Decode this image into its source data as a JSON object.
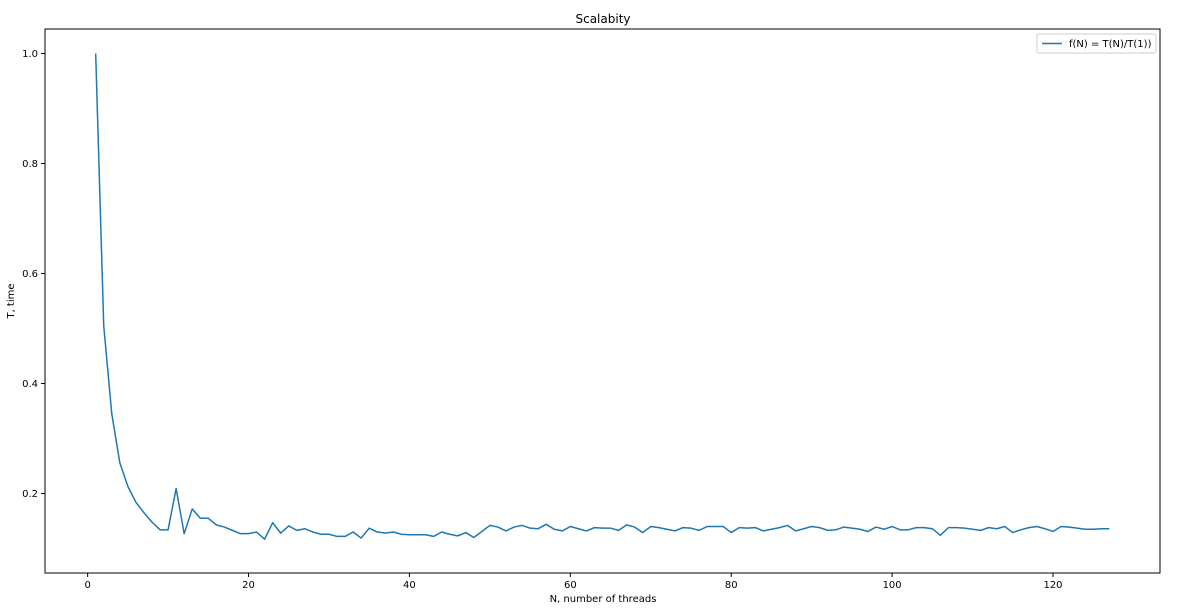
{
  "chart_data": {
    "type": "line",
    "title": "Scalabity",
    "xlabel": "N, number of threads",
    "ylabel": "T, time",
    "xlim": [
      -5.3,
      133.3
    ],
    "ylim": [
      0.0555,
      1.0445
    ],
    "grid": false,
    "legend_position": "top-right",
    "x_ticks": [
      0,
      20,
      40,
      60,
      80,
      100,
      120
    ],
    "y_ticks": [
      0.2,
      0.4,
      0.6,
      0.8,
      1.0
    ],
    "x_tick_labels": [
      "0",
      "20",
      "40",
      "60",
      "80",
      "100",
      "120"
    ],
    "y_tick_labels": [
      "0.2",
      "0.4",
      "0.6",
      "0.8",
      "1.0"
    ],
    "series": [
      {
        "name": "f(N) = T(N)/T(1))",
        "color": "#1f77b4",
        "x": [
          1,
          2,
          3,
          4,
          5,
          6,
          7,
          8,
          9,
          10,
          11,
          12,
          13,
          14,
          15,
          16,
          17,
          18,
          19,
          20,
          21,
          22,
          23,
          24,
          25,
          26,
          27,
          28,
          29,
          30,
          31,
          32,
          33,
          34,
          35,
          36,
          37,
          38,
          39,
          40,
          41,
          42,
          43,
          44,
          45,
          46,
          47,
          48,
          49,
          50,
          51,
          52,
          53,
          54,
          55,
          56,
          57,
          58,
          59,
          60,
          61,
          62,
          63,
          64,
          65,
          66,
          67,
          68,
          69,
          70,
          71,
          72,
          73,
          74,
          75,
          76,
          77,
          78,
          79,
          80,
          81,
          82,
          83,
          84,
          85,
          86,
          87,
          88,
          89,
          90,
          91,
          92,
          93,
          94,
          95,
          96,
          97,
          98,
          99,
          100,
          101,
          102,
          103,
          104,
          105,
          106,
          107,
          108,
          109,
          110,
          111,
          112,
          113,
          114,
          115,
          116,
          117,
          118,
          119,
          120,
          121,
          122,
          123,
          124,
          125,
          126,
          127
        ],
        "y": [
          1.0,
          0.505,
          0.345,
          0.256,
          0.213,
          0.184,
          0.165,
          0.148,
          0.134,
          0.134,
          0.209,
          0.127,
          0.172,
          0.155,
          0.155,
          0.143,
          0.139,
          0.133,
          0.127,
          0.127,
          0.13,
          0.117,
          0.147,
          0.128,
          0.141,
          0.133,
          0.136,
          0.13,
          0.126,
          0.126,
          0.122,
          0.122,
          0.13,
          0.119,
          0.137,
          0.13,
          0.128,
          0.13,
          0.126,
          0.125,
          0.125,
          0.125,
          0.122,
          0.13,
          0.126,
          0.123,
          0.129,
          0.12,
          0.131,
          0.142,
          0.139,
          0.132,
          0.139,
          0.142,
          0.137,
          0.136,
          0.144,
          0.135,
          0.132,
          0.14,
          0.136,
          0.132,
          0.138,
          0.137,
          0.137,
          0.133,
          0.143,
          0.139,
          0.129,
          0.14,
          0.138,
          0.135,
          0.132,
          0.138,
          0.137,
          0.133,
          0.14,
          0.14,
          0.14,
          0.129,
          0.138,
          0.137,
          0.138,
          0.132,
          0.135,
          0.138,
          0.142,
          0.132,
          0.136,
          0.14,
          0.138,
          0.133,
          0.134,
          0.139,
          0.137,
          0.135,
          0.131,
          0.139,
          0.135,
          0.14,
          0.134,
          0.134,
          0.138,
          0.138,
          0.136,
          0.124,
          0.138,
          0.138,
          0.137,
          0.135,
          0.133,
          0.138,
          0.136,
          0.14,
          0.129,
          0.134,
          0.138,
          0.14,
          0.136,
          0.131,
          0.14,
          0.139,
          0.137,
          0.135,
          0.135,
          0.136,
          0.136
        ]
      }
    ]
  }
}
